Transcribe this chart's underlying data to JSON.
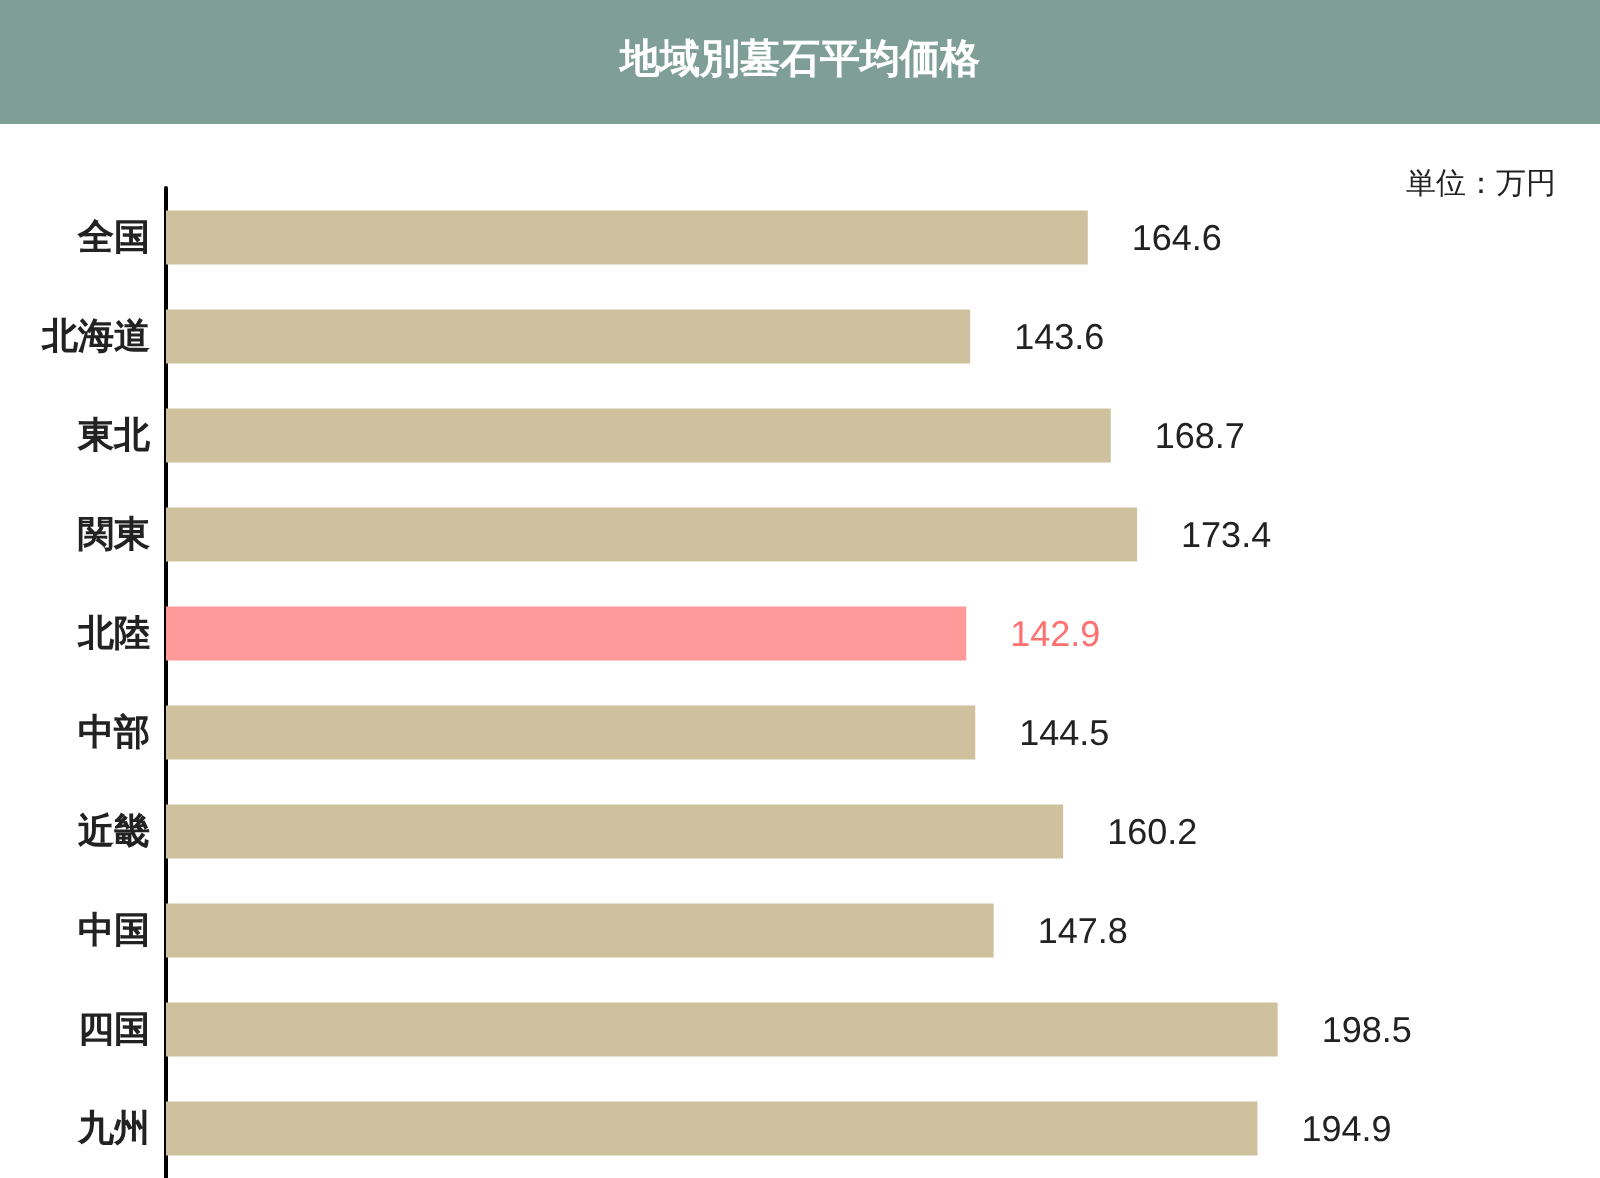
{
  "chart_data": {
    "type": "bar",
    "orientation": "horizontal",
    "title": "地域別墓石平均価格",
    "annotations": [
      "単位：万円"
    ],
    "categories": [
      "全国",
      "北海道",
      "東北",
      "関東",
      "北陸",
      "中部",
      "近畿",
      "中国",
      "四国",
      "九州"
    ],
    "values": [
      164.6,
      143.6,
      168.7,
      173.4,
      142.9,
      144.5,
      160.2,
      147.8,
      198.5,
      194.9
    ],
    "colors": [
      "#cfc19e",
      "#cfc19e",
      "#cfc19e",
      "#cfc19e",
      "#ff9999",
      "#cfc19e",
      "#cfc19e",
      "#cfc19e",
      "#cfc19e",
      "#cfc19e"
    ],
    "data_labels": true
  }
}
